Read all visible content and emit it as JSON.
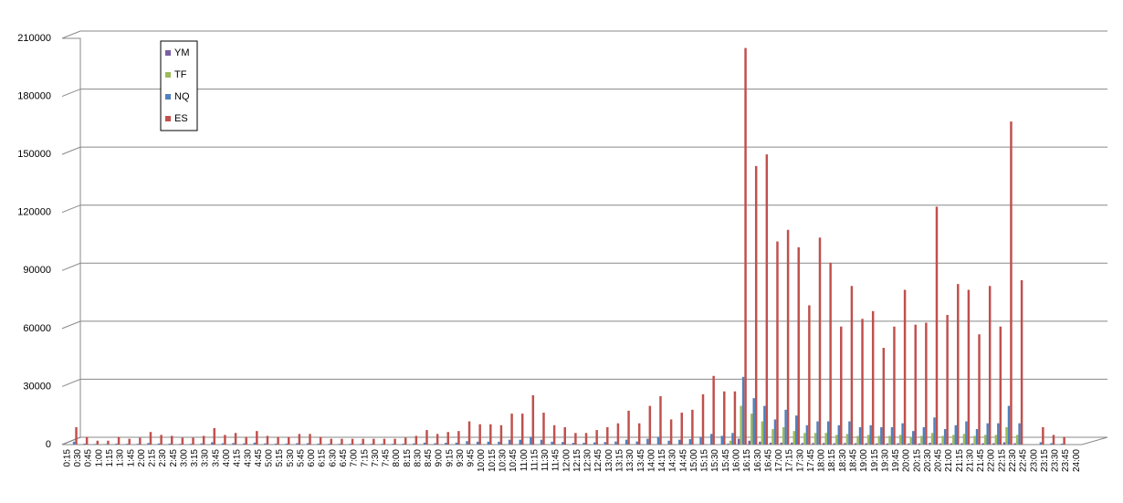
{
  "chart_data": {
    "type": "bar",
    "categories": [
      "0:15",
      "0:30",
      "0:45",
      "1:00",
      "1:15",
      "1:30",
      "1:45",
      "2:00",
      "2:15",
      "2:30",
      "2:45",
      "3:00",
      "3:15",
      "3:30",
      "3:45",
      "4:00",
      "4:15",
      "4:30",
      "4:45",
      "5:00",
      "5:15",
      "5:30",
      "5:45",
      "6:00",
      "6:15",
      "6:30",
      "6:45",
      "7:00",
      "7:15",
      "7:30",
      "7:45",
      "8:00",
      "8:15",
      "8:30",
      "8:45",
      "9:00",
      "9:15",
      "9:30",
      "9:45",
      "10:00",
      "10:15",
      "10:30",
      "10:45",
      "11:00",
      "11:15",
      "11:30",
      "11:45",
      "12:00",
      "12:15",
      "12:30",
      "12:45",
      "13:00",
      "13:15",
      "13:30",
      "13:45",
      "14:00",
      "14:15",
      "14:30",
      "14:45",
      "15:00",
      "15:15",
      "15:30",
      "15:45",
      "16:00",
      "16:15",
      "16:30",
      "16:45",
      "17:00",
      "17:15",
      "17:30",
      "17:45",
      "18:00",
      "18:15",
      "18:30",
      "18:45",
      "19:00",
      "19:15",
      "19:30",
      "19:45",
      "20:00",
      "20:15",
      "20:30",
      "20:45",
      "21:00",
      "21:15",
      "21:30",
      "21:45",
      "22:00",
      "22:15",
      "22:30",
      "22:45",
      "23:00",
      "23:15",
      "23:30",
      "23:45",
      "24:00"
    ],
    "series": [
      {
        "name": "YM",
        "color": "#7b5fa5",
        "values": [
          0,
          0,
          0,
          0,
          0,
          0,
          0,
          0,
          0,
          0,
          0,
          0,
          0,
          0,
          0,
          0,
          0,
          0,
          0,
          0,
          0,
          0,
          0,
          0,
          0,
          0,
          0,
          0,
          0,
          0,
          0,
          0,
          0,
          0,
          0,
          0,
          0,
          0,
          0,
          0,
          0,
          0,
          0,
          0,
          0,
          0,
          0,
          0,
          0,
          0,
          0,
          0,
          0,
          0,
          0,
          0,
          0,
          0,
          0,
          0,
          0,
          0,
          500,
          3000,
          2000,
          1500,
          1000,
          1000,
          1000,
          800,
          800,
          800,
          700,
          800,
          700,
          700,
          600,
          600,
          700,
          600,
          600,
          900,
          600,
          700,
          700,
          600,
          700,
          700,
          1200,
          700,
          0,
          0,
          0,
          0,
          0,
          0
        ]
      },
      {
        "name": "TF",
        "color": "#9bbb59",
        "values": [
          0,
          0,
          0,
          0,
          0,
          0,
          0,
          0,
          0,
          0,
          0,
          0,
          0,
          0,
          0,
          0,
          0,
          0,
          0,
          0,
          0,
          0,
          0,
          0,
          0,
          0,
          0,
          0,
          0,
          0,
          0,
          0,
          0,
          0,
          0,
          0,
          0,
          0,
          0,
          0,
          0,
          0,
          0,
          0,
          0,
          0,
          0,
          0,
          0,
          0,
          0,
          0,
          0,
          0,
          0,
          0,
          0,
          0,
          0,
          0,
          0,
          0,
          2000,
          20000,
          16000,
          12000,
          8000,
          9000,
          7000,
          6000,
          6000,
          6000,
          5000,
          5500,
          4500,
          5000,
          4500,
          4500,
          5000,
          4000,
          4500,
          6000,
          4500,
          5000,
          5500,
          4500,
          5000,
          5000,
          9000,
          5000,
          0,
          0,
          0,
          0,
          0,
          0
        ]
      },
      {
        "name": "NQ",
        "color": "#4f81bd",
        "values": [
          1500,
          500,
          300,
          300,
          500,
          400,
          400,
          800,
          600,
          500,
          400,
          400,
          600,
          1200,
          700,
          800,
          600,
          1000,
          600,
          500,
          500,
          700,
          700,
          500,
          400,
          400,
          400,
          400,
          400,
          400,
          400,
          500,
          600,
          1000,
          700,
          900,
          1000,
          1800,
          1500,
          1500,
          1500,
          2500,
          2500,
          4000,
          2500,
          1500,
          1300,
          900,
          900,
          1100,
          1300,
          1600,
          2500,
          1600,
          3000,
          4000,
          2000,
          2500,
          2800,
          4000,
          5500,
          4500,
          6000,
          35000,
          24000,
          20000,
          13000,
          18000,
          15000,
          10000,
          12000,
          12000,
          10000,
          12000,
          9000,
          10000,
          9000,
          9000,
          11000,
          7000,
          9000,
          14000,
          8000,
          10000,
          12000,
          8000,
          11000,
          11000,
          20000,
          11000,
          0,
          1200,
          700,
          500,
          0,
          0
        ]
      },
      {
        "name": "ES",
        "color": "#c0504d",
        "values": [
          9000,
          4000,
          2000,
          2000,
          4000,
          3000,
          3500,
          6500,
          5000,
          4500,
          3500,
          3500,
          4500,
          8500,
          5000,
          6000,
          4000,
          7000,
          4500,
          4000,
          4000,
          5500,
          5500,
          4000,
          3000,
          3000,
          3000,
          3000,
          3000,
          3000,
          3000,
          3500,
          4500,
          7500,
          5500,
          6500,
          7000,
          12000,
          10500,
          10500,
          10000,
          16000,
          16000,
          25500,
          16500,
          10000,
          9000,
          6000,
          6000,
          7500,
          9000,
          11000,
          17500,
          11000,
          20000,
          25000,
          13000,
          16500,
          18000,
          26000,
          35500,
          27500,
          27500,
          205000,
          144000,
          150000,
          105000,
          111000,
          102000,
          72000,
          107000,
          94000,
          61000,
          82000,
          65000,
          69000,
          50000,
          61000,
          80000,
          62000,
          63000,
          123000,
          67000,
          83000,
          80000,
          57000,
          82000,
          61000,
          167000,
          85000,
          0,
          9000,
          5000,
          4000,
          0,
          0
        ]
      }
    ],
    "ylim": [
      0,
      210000
    ],
    "yticks": [
      0,
      30000,
      60000,
      90000,
      120000,
      150000,
      180000,
      210000
    ],
    "grid": true
  }
}
